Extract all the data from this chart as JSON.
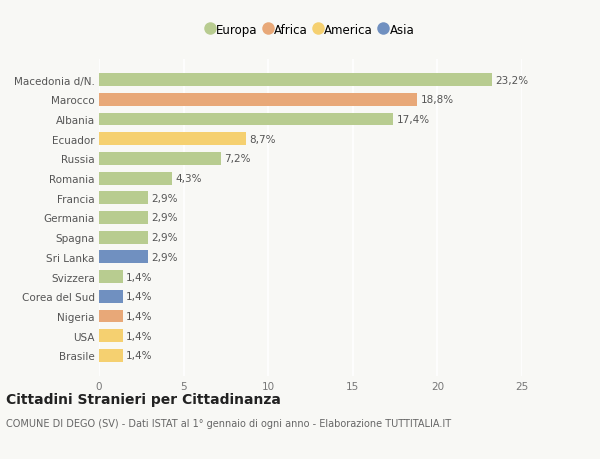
{
  "categories": [
    "Brasile",
    "USA",
    "Nigeria",
    "Corea del Sud",
    "Svizzera",
    "Sri Lanka",
    "Spagna",
    "Germania",
    "Francia",
    "Romania",
    "Russia",
    "Ecuador",
    "Albania",
    "Marocco",
    "Macedonia d/N."
  ],
  "values": [
    1.4,
    1.4,
    1.4,
    1.4,
    1.4,
    2.9,
    2.9,
    2.9,
    2.9,
    4.3,
    7.2,
    8.7,
    17.4,
    18.8,
    23.2
  ],
  "colors": [
    "#f5d070",
    "#f5d070",
    "#e8a878",
    "#7090c0",
    "#b8cc90",
    "#7090c0",
    "#b8cc90",
    "#b8cc90",
    "#b8cc90",
    "#b8cc90",
    "#b8cc90",
    "#f5d070",
    "#b8cc90",
    "#e8a878",
    "#b8cc90"
  ],
  "labels": [
    "1,4%",
    "1,4%",
    "1,4%",
    "1,4%",
    "1,4%",
    "2,9%",
    "2,9%",
    "2,9%",
    "2,9%",
    "4,3%",
    "7,2%",
    "8,7%",
    "17,4%",
    "18,8%",
    "23,2%"
  ],
  "legend": [
    {
      "label": "Europa",
      "color": "#b8cc90"
    },
    {
      "label": "Africa",
      "color": "#e8a878"
    },
    {
      "label": "America",
      "color": "#f5d070"
    },
    {
      "label": "Asia",
      "color": "#7090c0"
    }
  ],
  "xlim": [
    0,
    25
  ],
  "xticks": [
    0,
    5,
    10,
    15,
    20,
    25
  ],
  "title": "Cittadini Stranieri per Cittadinanza",
  "subtitle": "COMUNE DI DEGO (SV) - Dati ISTAT al 1° gennaio di ogni anno - Elaborazione TUTTITALIA.IT",
  "background_color": "#f8f8f5",
  "bar_height": 0.65,
  "label_fontsize": 7.5,
  "ylabel_fontsize": 7.5,
  "xlabel_fontsize": 7.5,
  "title_fontsize": 10,
  "subtitle_fontsize": 7,
  "legend_fontsize": 8.5
}
